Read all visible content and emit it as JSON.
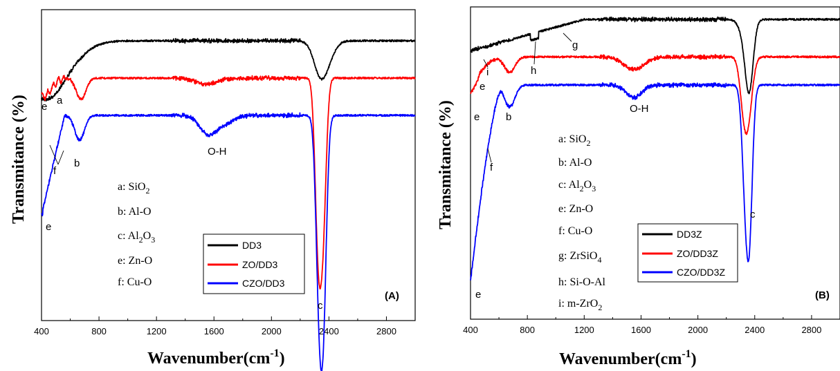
{
  "chart_data": [
    {
      "type": "line",
      "panel_label": "(A)",
      "xlabel": "Wavenumber(cm",
      "xlabel_sup": "-1",
      "xlabel_close": ")",
      "ylabel": "Transmitance (%)",
      "xlim": [
        400,
        3000
      ],
      "x_ticks": [
        400,
        800,
        1200,
        1600,
        2000,
        2400,
        2800
      ],
      "y_tick_labels": "none",
      "series": [
        {
          "name": "DD3",
          "color": "#000000",
          "baseline": 0.1,
          "features": [
            [
              420,
              0.09,
              0.18
            ],
            [
              470,
              0.04,
              0.01
            ],
            [
              2330,
              0.02,
              0.03
            ],
            [
              2362,
              0.03,
              0.1
            ]
          ]
        },
        {
          "name": "ZO/DD3",
          "color": "#ff0000",
          "baseline": 0.22,
          "features": [
            [
              410,
              0.03,
              0.06
            ],
            [
              675,
              0.018,
              0.07
            ],
            [
              1550,
              0.04,
              0.02
            ],
            [
              2325,
              0.012,
              0.5
            ],
            [
              2360,
              0.012,
              0.42
            ]
          ]
        },
        {
          "name": "CZO/DD3",
          "color": "#0000ff",
          "baseline": 0.34,
          "features": [
            [
              665,
              0.018,
              0.08
            ],
            [
              1550,
              0.03,
              0.05
            ],
            [
              1650,
              0.04,
              0.03
            ],
            [
              2330,
              0.012,
              0.5
            ],
            [
              2362,
              0.012,
              0.57
            ]
          ]
        }
      ],
      "annotations": [
        "e",
        "a",
        "b",
        "f",
        "O-H",
        "e",
        "c"
      ],
      "key": {
        "a": {
          "pre": "a: SiO",
          "sub": "2"
        },
        "b": "b: Al-O",
        "c": {
          "pre": "c: Al",
          "sub1": "2",
          "mid": "O",
          "sub2": "3"
        },
        "e": "e: Zn-O",
        "f": "f: Cu-O"
      }
    },
    {
      "type": "line",
      "panel_label": "(B)",
      "xlabel": "Wavenumber(cm",
      "xlabel_sup": "-1",
      "xlabel_close": ")",
      "ylabel": "Transmitance (%)",
      "xlim": [
        400,
        3000
      ],
      "x_ticks": [
        400,
        800,
        1200,
        1600,
        2000,
        2400,
        2800
      ],
      "y_tick_labels": "none",
      "series": [
        {
          "name": "DD3Z",
          "color": "#000000",
          "baseline": 0.04,
          "features": [
            [
              2330,
              0.02,
              0.05
            ],
            [
              2362,
              0.015,
              0.2
            ]
          ]
        },
        {
          "name": "ZO/DD3Z",
          "color": "#ff0000",
          "baseline": 0.16,
          "features": [
            [
              420,
              0.04,
              0.06
            ],
            [
              675,
              0.02,
              0.05
            ],
            [
              1550,
              0.04,
              0.04
            ],
            [
              2325,
              0.015,
              0.16
            ],
            [
              2360,
              0.015,
              0.14
            ]
          ]
        },
        {
          "name": "CZO/DD3Z",
          "color": "#0000ff",
          "baseline": 0.25,
          "features": [
            [
              675,
              0.02,
              0.07
            ],
            [
              1550,
              0.03,
              0.04
            ],
            [
              2330,
              0.012,
              0.26
            ],
            [
              2362,
              0.012,
              0.45
            ]
          ]
        }
      ],
      "annotations": [
        "g",
        "i",
        "h",
        "e",
        "e",
        "b",
        "O-H",
        "f",
        "e",
        "c"
      ],
      "key": {
        "a": {
          "pre": "a: SiO",
          "sub": "2"
        },
        "b": "b: Al-O",
        "c": {
          "pre": "c: Al",
          "sub1": "2",
          "mid": "O",
          "sub2": "3"
        },
        "e": "e: Zn-O",
        "f": "f: Cu-O",
        "g": {
          "pre": "g: ZrSiO",
          "sub": "4"
        },
        "h": "h: Si-O-Al",
        "i": {
          "pre": "i: m-ZrO",
          "sub": "2"
        }
      }
    }
  ]
}
